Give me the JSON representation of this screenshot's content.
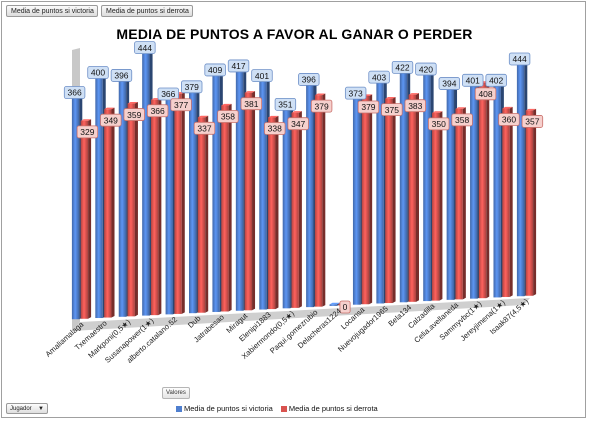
{
  "filter_tabs": [
    "Media de puntos si victoria",
    "Media de puntos si derrota"
  ],
  "values_label": "Valores",
  "row_field": {
    "label": "Jugador",
    "arrow": "▼"
  },
  "colors": {
    "victoria": "#4f7fcf",
    "derrota": "#d9534f"
  },
  "chart_data": {
    "type": "bar",
    "title": "MEDIA DE PUNTOS A FAVOR AL GANAR O PERDER",
    "categories": [
      "Amaliamalaga",
      "Txemaestro",
      "Markponi(0,5★)",
      "Susanapower(1★)",
      "alberto.catalano.52",
      "Dub",
      "Jatrabesao",
      "Miragut",
      "Elenipi1883",
      "Xabiermondo(0,5★)",
      "Paqui.gomezrubio",
      "Delacheras1224",
      "Locansa",
      "Nuevojugador1965",
      "Bela134",
      "Calzadilla",
      "Celia.avellaneda",
      "Sammyvbc(1★)",
      "Jereyjimena(1★)",
      "Isaak87(4,5★)"
    ],
    "series": [
      {
        "name": "Media de puntos si victoria",
        "values": [
          366,
          400,
          396,
          444,
          366,
          379,
          409,
          417,
          401,
          351,
          396,
          0,
          373,
          403,
          422,
          420,
          394,
          401,
          402,
          444
        ]
      },
      {
        "name": "Media de puntos si derrota",
        "values": [
          329,
          349,
          359,
          366,
          377,
          337,
          358,
          381,
          338,
          347,
          379,
          0,
          379,
          375,
          383,
          350,
          358,
          408,
          360,
          357
        ]
      }
    ],
    "ylim": [
      0,
      450
    ],
    "legend": "bottom",
    "grid": false,
    "data_labels": true,
    "perspective": "3d"
  }
}
